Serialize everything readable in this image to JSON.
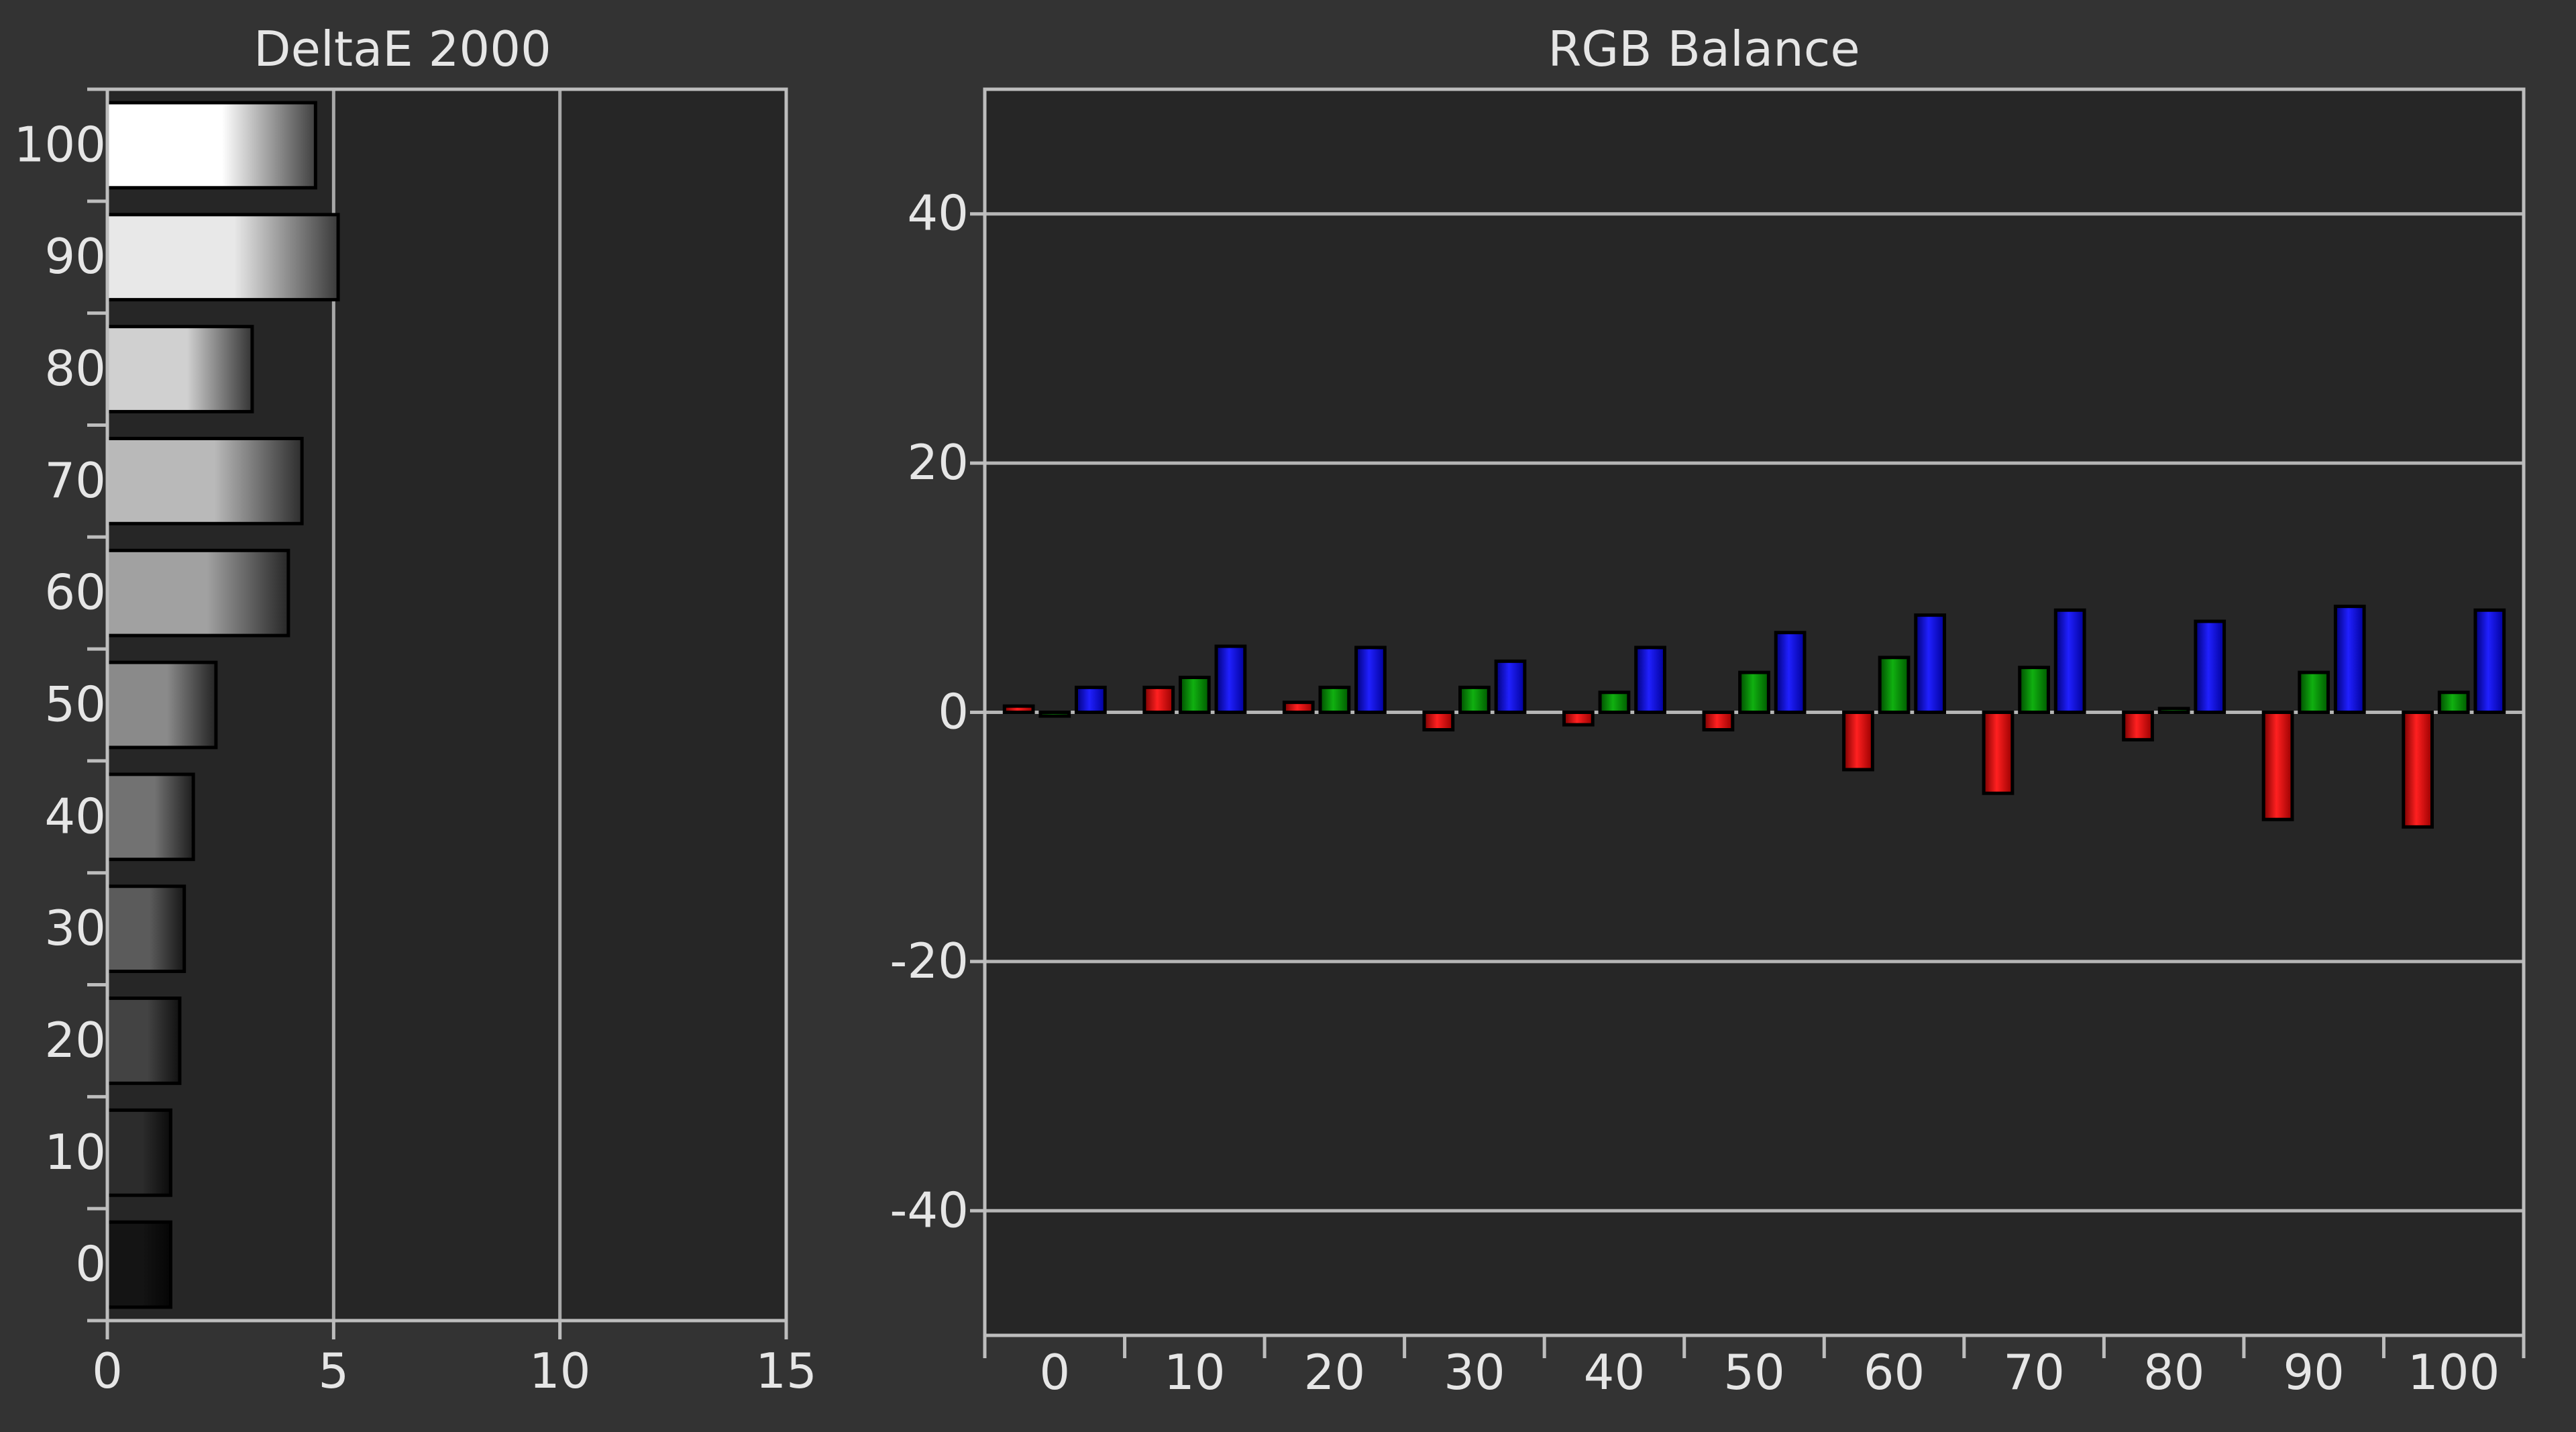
{
  "chart_data": [
    {
      "type": "bar",
      "orientation": "horizontal",
      "title": "DeltaE 2000",
      "xlabel": "",
      "ylabel": "",
      "xlim": [
        0,
        15
      ],
      "x_ticks": [
        "0",
        "5",
        "10",
        "15"
      ],
      "categories": [
        "100",
        "90",
        "80",
        "70",
        "60",
        "50",
        "40",
        "30",
        "20",
        "10",
        "0"
      ],
      "values": [
        4.6,
        5.1,
        3.2,
        4.3,
        4.0,
        2.4,
        1.9,
        1.7,
        1.6,
        1.4,
        1.4
      ],
      "grid": true,
      "legend": "none"
    },
    {
      "type": "bar",
      "title": "RGB Balance",
      "xlabel": "",
      "ylabel": "",
      "ylim": [
        -50,
        50
      ],
      "y_ticks": [
        "40",
        "20",
        "0",
        "-20",
        "-40"
      ],
      "categories": [
        "0",
        "10",
        "20",
        "30",
        "40",
        "50",
        "60",
        "70",
        "80",
        "90",
        "100"
      ],
      "series": [
        {
          "color": "#ff0000",
          "values": [
            0.5,
            2.0,
            0.8,
            -1.4,
            -1.0,
            -1.4,
            -4.6,
            -6.5,
            -2.2,
            -8.6,
            -9.2
          ]
        },
        {
          "color": "#00aa00",
          "values": [
            -0.3,
            2.8,
            2.0,
            2.0,
            1.6,
            3.2,
            4.4,
            3.6,
            0.3,
            3.2,
            1.6
          ]
        },
        {
          "color": "#0000ff",
          "values": [
            2.0,
            5.3,
            5.2,
            4.1,
            5.2,
            6.4,
            7.8,
            8.2,
            7.3,
            8.5,
            8.2
          ]
        }
      ],
      "grid": true,
      "legend": "none"
    }
  ]
}
